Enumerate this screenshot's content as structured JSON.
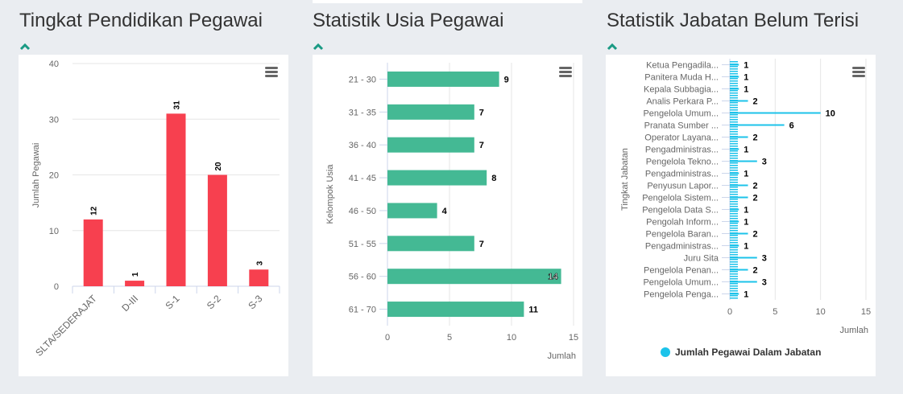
{
  "colors": {
    "edu_bar": "#f7404f",
    "age_bar": "#44b994",
    "pos_bar": "#1cc3ea",
    "chevron": "#1a9a84"
  },
  "icons": {
    "collapse": "chevron-up-icon",
    "menu": "hamburger-menu-icon"
  },
  "chart_data": [
    {
      "type": "bar",
      "title": "Tingkat Pendidikan Pegawai",
      "ylabel": "Jumlah Pegawai",
      "xlabel": "",
      "categories": [
        "SLTA/SEDERAJAT",
        "D-III",
        "S-1",
        "S-2",
        "S-3"
      ],
      "values": [
        12,
        1,
        31,
        20,
        3
      ],
      "ylim": [
        0,
        40
      ],
      "yticks": [
        "0",
        "10",
        "20",
        "30",
        "40"
      ],
      "grid": true
    },
    {
      "type": "bar",
      "orientation": "horizontal",
      "title": "Statistik Usia Pegawai",
      "ylabel": "Kelompok Usia",
      "xlabel": "Jumlah",
      "categories": [
        "21 - 30",
        "31 - 35",
        "36 - 40",
        "41 - 45",
        "46 - 50",
        "51 - 55",
        "56 - 60",
        "61 - 70"
      ],
      "values": [
        9,
        7,
        7,
        8,
        4,
        7,
        14,
        11
      ],
      "xlim": [
        0,
        15
      ],
      "xticks": [
        "0",
        "5",
        "10",
        "15"
      ],
      "grid": true
    },
    {
      "type": "bar",
      "orientation": "horizontal",
      "title": "Statistik Jabatan Belum Terisi",
      "ylabel": "Tingkat Jabatan",
      "xlabel": "Jumlah",
      "categories": [
        "Ketua Pengadila...",
        "Panitera Muda H...",
        "Kepala Subbagia...",
        "Analis Perkara P...",
        "Pengelola Umum...",
        "Pranata Sumber ...",
        "Operator Layana...",
        "Pengadministras...",
        "Pengelola Tekno...",
        "Pengadministras...",
        "Penyusun Lapor...",
        "Pengelola Sistem...",
        "Pengelola Data S...",
        "Pengolah Inform...",
        "Pengelola Baran...",
        "Pengadministras...",
        "Juru Sita",
        "Pengelola Penan...",
        "Pengelola Umum...",
        "Pengelola Penga..."
      ],
      "values": [
        1,
        1,
        1,
        2,
        10,
        6,
        2,
        1,
        3,
        1,
        2,
        2,
        1,
        1,
        2,
        1,
        3,
        2,
        3,
        1
      ],
      "xlim": [
        0,
        15
      ],
      "xticks": [
        "0",
        "5",
        "10",
        "15"
      ],
      "grid": true,
      "legend": {
        "label": "Jumlah Pegawai Dalam Jabatan",
        "position": "bottom"
      }
    }
  ]
}
